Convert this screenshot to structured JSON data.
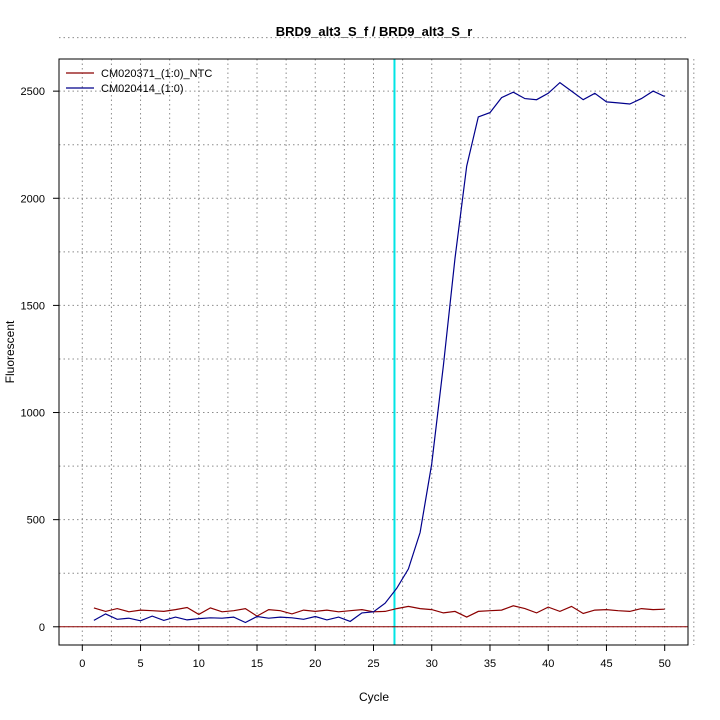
{
  "chart_data": {
    "type": "line",
    "title": "BRD9_alt3_S_f / BRD9_alt3_S_r",
    "xlabel": "Cycle",
    "ylabel": "Fluorescent",
    "xlim": [
      -2,
      52
    ],
    "ylim": [
      -85,
      2650
    ],
    "x_ticks": [
      0,
      5,
      10,
      15,
      20,
      25,
      30,
      35,
      40,
      45,
      50
    ],
    "y_ticks": [
      0,
      500,
      1000,
      1500,
      2000,
      2500
    ],
    "grid": true,
    "legend_position": "top-left",
    "threshold_cycle": 26.8,
    "threshold_color": "#00e5e5",
    "baseline_y": 0,
    "baseline_color": "#8b0000",
    "series": [
      {
        "name": "CM020371_(1:0)_NTC",
        "color": "#8b0000",
        "x": [
          1,
          2,
          3,
          4,
          5,
          6,
          7,
          8,
          9,
          10,
          11,
          12,
          13,
          14,
          15,
          16,
          17,
          18,
          19,
          20,
          21,
          22,
          23,
          24,
          25,
          26,
          27,
          28,
          29,
          30,
          31,
          32,
          33,
          34,
          35,
          36,
          37,
          38,
          39,
          40,
          41,
          42,
          43,
          44,
          45,
          46,
          47,
          48,
          49,
          50
        ],
        "values": [
          88,
          72,
          85,
          70,
          78,
          75,
          72,
          80,
          90,
          58,
          88,
          70,
          75,
          85,
          50,
          80,
          75,
          60,
          78,
          72,
          78,
          70,
          75,
          80,
          70,
          72,
          85,
          95,
          85,
          80,
          65,
          72,
          45,
          72,
          75,
          78,
          98,
          85,
          65,
          92,
          72,
          95,
          62,
          78,
          80,
          75,
          72,
          85,
          80,
          82
        ]
      },
      {
        "name": "CM020414_(1:0)",
        "color": "#00008b",
        "x": [
          1,
          2,
          3,
          4,
          5,
          6,
          7,
          8,
          9,
          10,
          11,
          12,
          13,
          14,
          15,
          16,
          17,
          18,
          19,
          20,
          21,
          22,
          23,
          24,
          25,
          26,
          27,
          28,
          29,
          30,
          31,
          32,
          33,
          34,
          35,
          36,
          37,
          38,
          39,
          40,
          41,
          42,
          43,
          44,
          45,
          46,
          47,
          48,
          49,
          50
        ],
        "values": [
          30,
          60,
          35,
          40,
          28,
          50,
          30,
          45,
          32,
          38,
          42,
          40,
          45,
          20,
          48,
          40,
          45,
          42,
          35,
          48,
          32,
          45,
          25,
          65,
          70,
          110,
          180,
          270,
          440,
          760,
          1220,
          1720,
          2150,
          2380,
          2400,
          2470,
          2495,
          2465,
          2460,
          2490,
          2540,
          2500,
          2460,
          2490,
          2450,
          2445,
          2440,
          2465,
          2500,
          2475
        ]
      }
    ]
  }
}
